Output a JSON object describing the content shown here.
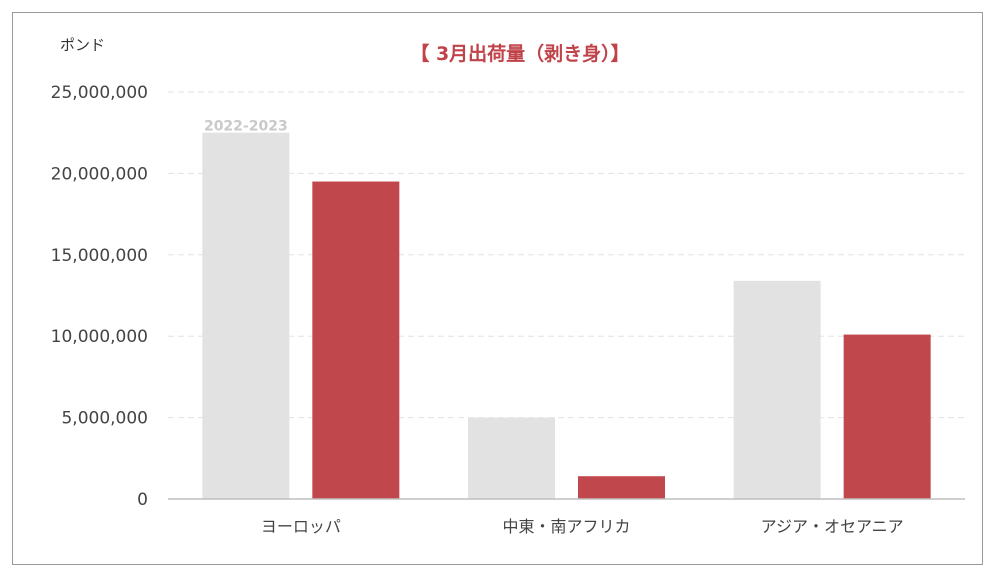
{
  "chart_data": {
    "type": "bar",
    "title": "【 3月出荷量（剥き身）】",
    "ylabel": "ポンド",
    "xlabel": "",
    "categories": [
      "ヨーロッパ",
      "中東・南アフリカ",
      "アジア・オセアニア"
    ],
    "series": [
      {
        "name": "2022-2023",
        "values": [
          22500000,
          5000000,
          13400000
        ],
        "color": "#e2e2e2"
      },
      {
        "values": [
          19500000,
          1400000,
          10100000
        ],
        "color": "#c0474c"
      }
    ],
    "ylim": [
      0,
      25000000
    ],
    "yticks": [
      "0",
      "5,000,000",
      "10,000,000",
      "15,000,000",
      "20,000,000",
      "25,000,000"
    ],
    "grid": true
  }
}
